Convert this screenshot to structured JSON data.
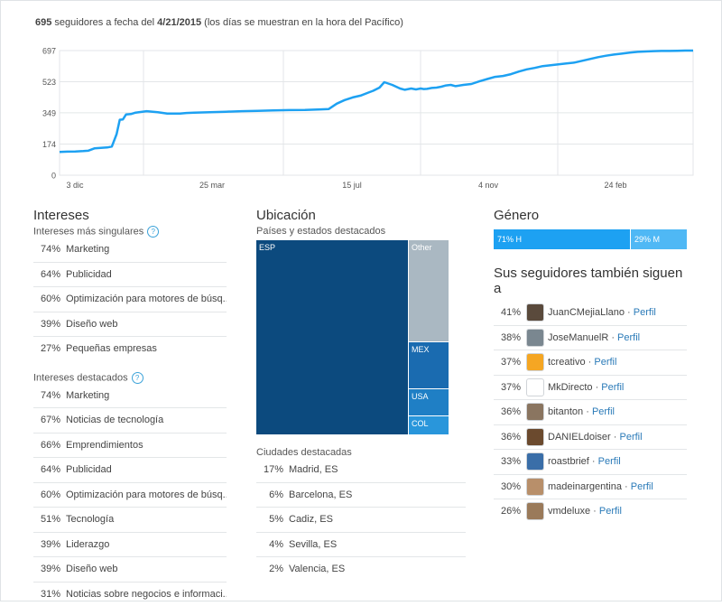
{
  "header": {
    "count": "695",
    "text_before": " seguidores a fecha del ",
    "date": "4/21/2015",
    "text_after": " (los días se muestran en la hora del Pacífico)"
  },
  "chart_data": {
    "type": "line",
    "title": "",
    "xlabel": "",
    "ylabel": "",
    "ylim": [
      0,
      697
    ],
    "yticks": [
      0,
      174,
      349,
      523,
      697
    ],
    "xticks": [
      "3 dic",
      "25 mar",
      "15 jul",
      "4 nov",
      "24 feb"
    ],
    "color": "#1da1f2",
    "grid": true,
    "x_index": [
      0,
      5,
      10,
      15,
      18,
      22,
      25,
      28,
      30,
      33,
      36,
      38,
      40,
      42,
      45,
      48,
      55,
      62,
      68,
      72,
      76,
      80,
      85,
      95,
      105,
      115,
      125,
      135,
      145,
      155,
      165,
      170,
      175,
      180,
      185,
      190,
      195,
      198,
      202,
      205,
      210,
      215,
      218,
      222,
      225,
      228,
      230,
      232,
      235,
      238,
      241,
      244,
      247,
      250,
      255,
      260,
      265,
      270,
      275,
      280,
      285,
      290,
      295,
      300,
      305,
      310,
      315,
      320,
      325,
      330,
      335,
      340,
      345,
      350,
      355,
      360,
      365,
      370,
      375,
      380,
      385,
      390,
      395,
      400
    ],
    "values": [
      130,
      132,
      133,
      135,
      137,
      150,
      152,
      154,
      155,
      160,
      230,
      310,
      312,
      340,
      342,
      350,
      358,
      352,
      345,
      345,
      345,
      348,
      350,
      352,
      355,
      358,
      360,
      362,
      364,
      365,
      368,
      370,
      400,
      420,
      435,
      445,
      462,
      472,
      490,
      520,
      505,
      485,
      478,
      485,
      480,
      485,
      482,
      483,
      488,
      490,
      495,
      502,
      505,
      498,
      505,
      510,
      525,
      538,
      550,
      555,
      565,
      580,
      592,
      600,
      610,
      615,
      620,
      625,
      630,
      640,
      650,
      660,
      668,
      675,
      680,
      686,
      690,
      692,
      694,
      695,
      695,
      696,
      697,
      697
    ]
  },
  "intereses": {
    "title": "Intereses",
    "singulares_label": "Intereses más singulares",
    "singulares": [
      {
        "pct": "74%",
        "label": "Marketing"
      },
      {
        "pct": "64%",
        "label": "Publicidad"
      },
      {
        "pct": "60%",
        "label": "Optimización para motores de búsq..."
      },
      {
        "pct": "39%",
        "label": "Diseño web"
      },
      {
        "pct": "27%",
        "label": "Pequeñas empresas"
      }
    ],
    "destacados_label": "Intereses destacados",
    "destacados": [
      {
        "pct": "74%",
        "label": "Marketing"
      },
      {
        "pct": "67%",
        "label": "Noticias de tecnología"
      },
      {
        "pct": "66%",
        "label": "Emprendimientos"
      },
      {
        "pct": "64%",
        "label": "Publicidad"
      },
      {
        "pct": "60%",
        "label": "Optimización para motores de búsq..."
      },
      {
        "pct": "51%",
        "label": "Tecnología"
      },
      {
        "pct": "39%",
        "label": "Liderazgo"
      },
      {
        "pct": "39%",
        "label": "Diseño web"
      },
      {
        "pct": "31%",
        "label": "Noticias sobre negocios e informaci..."
      }
    ]
  },
  "ubicacion": {
    "title": "Ubicación",
    "sub": "Países y estados destacados",
    "treemap": [
      {
        "label": "ESP",
        "value": 0.79,
        "color": "#0c4a7e"
      },
      {
        "label": "Other",
        "value": 0.11,
        "color": "#aab8c2"
      },
      {
        "label": "MEX",
        "value": 0.05,
        "color": "#1a6bb0"
      },
      {
        "label": "USA",
        "value": 0.03,
        "color": "#1f7fc5"
      },
      {
        "label": "COL",
        "value": 0.02,
        "color": "#2996db"
      }
    ],
    "ciudades_label": "Ciudades destacadas",
    "ciudades": [
      {
        "pct": "17%",
        "label": "Madrid, ES"
      },
      {
        "pct": "6%",
        "label": "Barcelona, ES"
      },
      {
        "pct": "5%",
        "label": "Cadiz, ES"
      },
      {
        "pct": "4%",
        "label": "Sevilla, ES"
      },
      {
        "pct": "2%",
        "label": "Valencia, ES"
      }
    ]
  },
  "genero": {
    "title": "Género",
    "male": {
      "label": "71% H",
      "value": 0.71,
      "color": "#1da1f2"
    },
    "female": {
      "label": "29% M",
      "value": 0.29,
      "color": "#4fb8f5"
    }
  },
  "siguen": {
    "title": "Sus seguidores también siguen a",
    "separator": " · ",
    "link_label": "Perfil",
    "items": [
      {
        "pct": "41%",
        "name": "JuanCMejiaLlano",
        "avatar_color": "#5a4a3c"
      },
      {
        "pct": "38%",
        "name": "JoseManuelR",
        "avatar_color": "#7a8790"
      },
      {
        "pct": "37%",
        "name": "tcreativo",
        "avatar_color": "#f5a623"
      },
      {
        "pct": "37%",
        "name": "MkDirecto",
        "avatar_color": "#ffffff"
      },
      {
        "pct": "36%",
        "name": "bitanton",
        "avatar_color": "#8a7560"
      },
      {
        "pct": "36%",
        "name": "DANIELdoiser",
        "avatar_color": "#6b4a2e"
      },
      {
        "pct": "33%",
        "name": "roastbrief",
        "avatar_color": "#3a6ea8"
      },
      {
        "pct": "30%",
        "name": "madeinargentina",
        "avatar_color": "#b88f6a"
      },
      {
        "pct": "26%",
        "name": "vmdeluxe",
        "avatar_color": "#9a7a5a"
      }
    ]
  }
}
